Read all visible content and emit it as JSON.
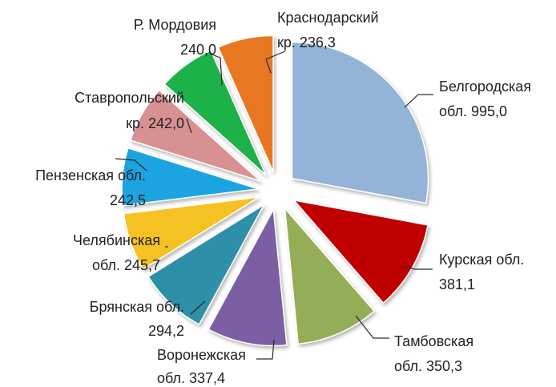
{
  "chart_data": {
    "type": "pie",
    "exploded": true,
    "value_unit": "",
    "slices": [
      {
        "category": "Белгородская обл.",
        "label_lines": [
          "Белгородская",
          "обл. 995,0"
        ],
        "value": 995.0,
        "color": "#93B3D7"
      },
      {
        "category": "Курская обл.",
        "label_lines": [
          "Курская обл.",
          "381,1"
        ],
        "value": 381.1,
        "color": "#C00000"
      },
      {
        "category": "Тамбовская обл.",
        "label_lines": [
          "Тамбовская",
          "обл. 350,3"
        ],
        "value": 350.3,
        "color": "#93AE57"
      },
      {
        "category": "Воронежская обл.",
        "label_lines": [
          "Воронежская",
          "обл. 337,4"
        ],
        "value": 337.4,
        "color": "#7B5EA3"
      },
      {
        "category": "Брянская обл.",
        "label_lines": [
          "Брянская обл.",
          "294,2"
        ],
        "value": 294.2,
        "color": "#2E8FA8"
      },
      {
        "category": "Челябинская обл.",
        "label_lines": [
          "Челябинская",
          "обл. 245,7"
        ],
        "value": 245.7,
        "color": "#F6C123"
      },
      {
        "category": "Пензенская обл.",
        "label_lines": [
          "Пензенская обл.",
          "242,5"
        ],
        "value": 242.5,
        "color": "#1AA4E0"
      },
      {
        "category": "Ставропольский кр.",
        "label_lines": [
          "Ставропольский",
          "кр. 242,0"
        ],
        "value": 242.0,
        "color": "#D89192"
      },
      {
        "category": "Р. Мордовия",
        "label_lines": [
          "Р. Мордовия",
          "240,0"
        ],
        "value": 240.0,
        "color": "#1FB24A"
      },
      {
        "category": "Краснодарский кр.",
        "label_lines": [
          "Краснодарский",
          "кр. 236,3"
        ],
        "value": 236.3,
        "color": "#E87722"
      }
    ],
    "start_angle_deg": 0,
    "direction": "clockwise",
    "legend": "none",
    "data_labels": "outside-with-leaders"
  }
}
